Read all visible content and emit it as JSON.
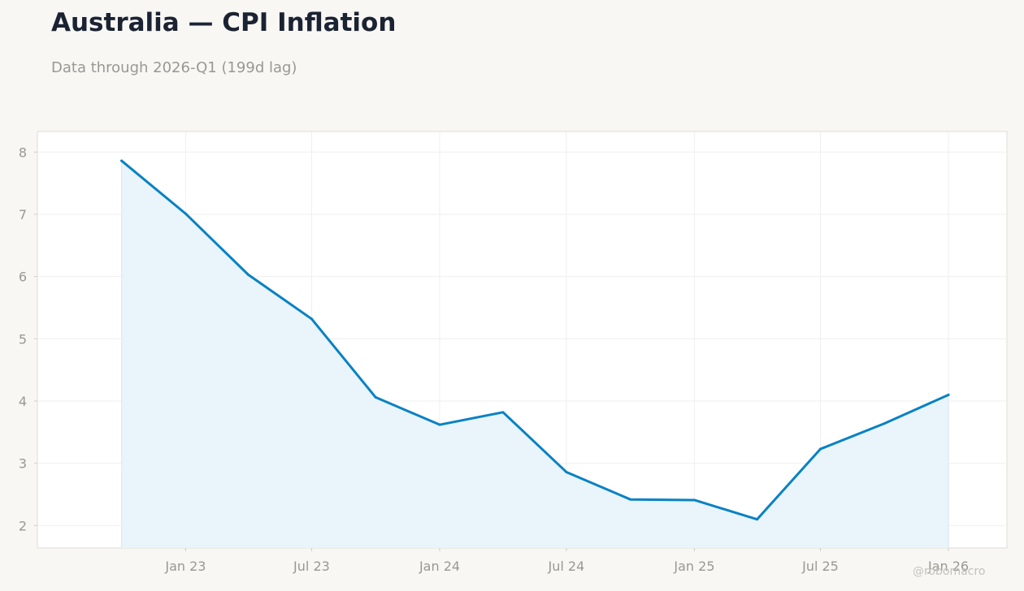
{
  "header": {
    "title": "Australia — CPI Inflation",
    "subtitle": "Data through 2026-Q1 (199d lag)"
  },
  "watermark": "@robomacro",
  "colors": {
    "background": "#f8f7f4",
    "plot_background": "#ffffff",
    "line": "#0882c4",
    "fill": "#eaf4fb",
    "grid": "#efefef",
    "tick_text": "#999891",
    "title": "#1b2333"
  },
  "chart_data": {
    "type": "area",
    "title": "",
    "xlabel": "",
    "ylabel": "",
    "x_axis_type": "date",
    "xlim": [
      "2022-06-02",
      "2026-03-26"
    ],
    "ylim": [
      1.64,
      8.33
    ],
    "grid": true,
    "legend": "none",
    "x_ticks": [
      {
        "date": "2023-01-01",
        "label": "Jan 23"
      },
      {
        "date": "2023-07-01",
        "label": "Jul 23"
      },
      {
        "date": "2024-01-01",
        "label": "Jan 24"
      },
      {
        "date": "2024-07-01",
        "label": "Jul 24"
      },
      {
        "date": "2025-01-01",
        "label": "Jan 25"
      },
      {
        "date": "2025-07-01",
        "label": "Jul 25"
      },
      {
        "date": "2026-01-01",
        "label": "Jan 26"
      }
    ],
    "y_ticks": [
      2,
      3,
      4,
      5,
      6,
      7,
      8
    ],
    "series": [
      {
        "x": [
          "2022-10-01",
          "2023-01-01",
          "2023-04-01",
          "2023-07-01",
          "2023-10-01",
          "2024-01-01",
          "2024-04-01",
          "2024-07-01",
          "2024-10-01",
          "2025-01-01",
          "2025-04-01",
          "2025-07-01",
          "2025-10-01",
          "2026-01-01"
        ],
        "values": [
          7.86,
          7.01,
          6.03,
          5.32,
          4.06,
          3.62,
          3.82,
          2.86,
          2.42,
          2.41,
          2.1,
          3.23,
          3.64,
          4.1
        ]
      }
    ]
  }
}
